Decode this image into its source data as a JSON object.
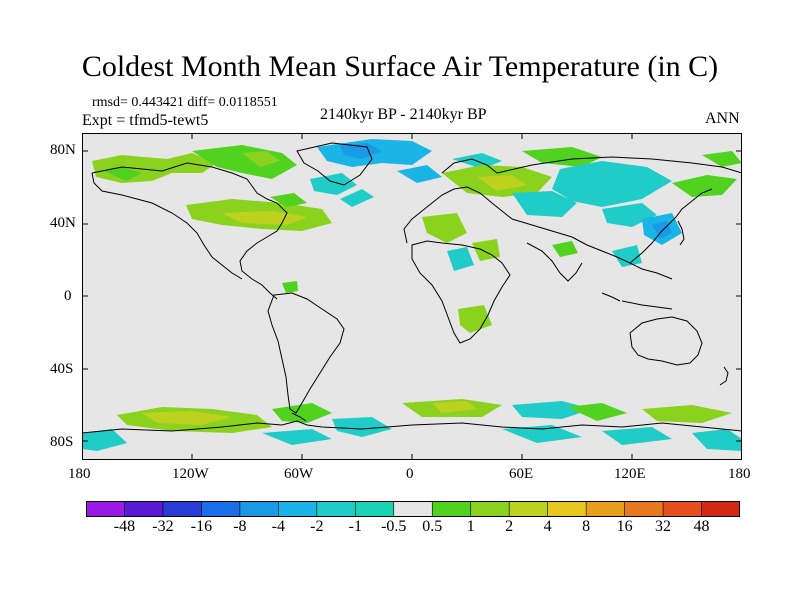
{
  "title": "Coldest Month Mean Surface Air Temperature (in C)",
  "stats": "rmsd= 0.443421 diff= 0.0118551",
  "experiment": "Expt = tfmd5-tewt5",
  "period": "2140kyr BP - 2140kyr BP",
  "season": "ANN",
  "lat_labels": [
    "80N",
    "40N",
    "0",
    "40S",
    "80S"
  ],
  "lon_labels": [
    "180",
    "120W",
    "60W",
    "0",
    "60E",
    "120E",
    "180"
  ],
  "colorbar": {
    "labels": [
      "-48",
      "-32",
      "-16",
      "-8",
      "-4",
      "-2",
      "-1",
      "-0.5",
      "0.5",
      "1",
      "2",
      "4",
      "8",
      "16",
      "32",
      "48"
    ],
    "colors": [
      "#9a1ae6",
      "#5a1ad6",
      "#2a3cd6",
      "#1a6ee6",
      "#1a9ae6",
      "#1ab4e6",
      "#20ccc8",
      "#1ad2b4",
      "#e6e6e6",
      "#50d21e",
      "#8ad21e",
      "#bcd21e",
      "#e6c81e",
      "#e6a01e",
      "#e6781e",
      "#e6501e",
      "#d22814"
    ]
  },
  "map_colors": {
    "ocean": "#e6e6e6",
    "coast": "#000000"
  }
}
